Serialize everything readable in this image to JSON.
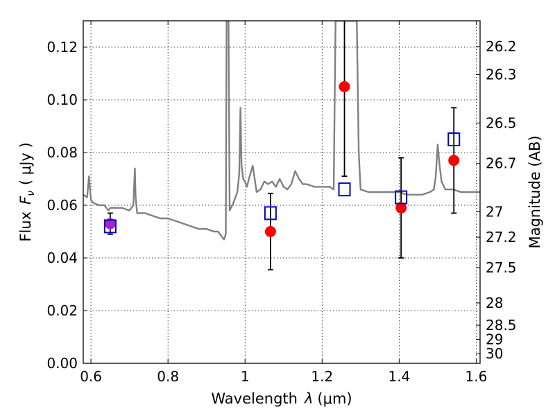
{
  "chart_data": {
    "type": "scatter",
    "title": "",
    "xlabel_text": "Wavelength",
    "xlabel_symbol": "λ",
    "xlabel_unit": "(μm)",
    "ylabel_text": "Flux",
    "ylabel_symbol": "F",
    "ylabel_subscript": "ν",
    "ylabel_unit": "( μJy )",
    "y2label": "Magnitude (AB)",
    "xlim": [
      0.58,
      1.61
    ],
    "ylim": [
      0.0,
      0.13
    ],
    "xticks": [
      0.6,
      0.8,
      1.0,
      1.2,
      1.4,
      1.6
    ],
    "xtick_labels": [
      "0.6",
      "0.8",
      "1",
      "1.2",
      "1.4",
      "1.6"
    ],
    "yticks": [
      0.0,
      0.02,
      0.04,
      0.06,
      0.08,
      0.1,
      0.12
    ],
    "ytick_labels": [
      "0.00",
      "0.02",
      "0.04",
      "0.06",
      "0.08",
      "0.10",
      "0.12"
    ],
    "y2ticks": [
      26.2,
      26.3,
      26.5,
      26.7,
      27,
      27.2,
      27.5,
      28,
      28.5,
      29,
      30
    ],
    "y2tick_labels": [
      "26.2",
      "26.3",
      "26.5",
      "26.7",
      "27",
      "27.2",
      "27.5",
      "28",
      "28.5",
      "29",
      "30"
    ],
    "grid": true,
    "colors": {
      "model": "#808080",
      "observed": "#ff0000",
      "model_photometry": "#0000cc",
      "overlap": "#aa22cc",
      "errorbar": "#000000"
    },
    "series": [
      {
        "kind": "line",
        "x": [
          0.58,
          0.59,
          0.595,
          0.6,
          0.605,
          0.62,
          0.635,
          0.64,
          0.645,
          0.65,
          0.66,
          0.68,
          0.7,
          0.71,
          0.714,
          0.716,
          0.72,
          0.74,
          0.76,
          0.78,
          0.8,
          0.82,
          0.84,
          0.86,
          0.88,
          0.9,
          0.92,
          0.93,
          0.94,
          0.945,
          0.95,
          0.952,
          0.955,
          0.957,
          0.96,
          0.97,
          0.98,
          0.985,
          0.988,
          0.991,
          0.995,
          1.0,
          1.005,
          1.01,
          1.02,
          1.03,
          1.04,
          1.05,
          1.06,
          1.07,
          1.08,
          1.09,
          1.1,
          1.11,
          1.12,
          1.13,
          1.14,
          1.15,
          1.16,
          1.18,
          1.2,
          1.22,
          1.23,
          1.235,
          1.24,
          1.245,
          1.25,
          1.255,
          1.26,
          1.27,
          1.275,
          1.28,
          1.285,
          1.29,
          1.295,
          1.3,
          1.32,
          1.34,
          1.36,
          1.38,
          1.4,
          1.42,
          1.44,
          1.46,
          1.48,
          1.49,
          1.495,
          1.5,
          1.505,
          1.51,
          1.52,
          1.54,
          1.56,
          1.58,
          1.6,
          1.61
        ],
        "y": [
          0.064,
          0.063,
          0.071,
          0.062,
          0.061,
          0.06,
          0.06,
          0.059,
          0.058,
          0.059,
          0.059,
          0.059,
          0.058,
          0.06,
          0.074,
          0.063,
          0.057,
          0.057,
          0.056,
          0.055,
          0.055,
          0.054,
          0.053,
          0.052,
          0.051,
          0.051,
          0.05,
          0.05,
          0.048,
          0.047,
          0.049,
          0.13,
          0.13,
          0.13,
          0.058,
          0.061,
          0.065,
          0.072,
          0.097,
          0.075,
          0.07,
          0.069,
          0.067,
          0.07,
          0.075,
          0.065,
          0.066,
          0.069,
          0.068,
          0.069,
          0.067,
          0.07,
          0.067,
          0.066,
          0.068,
          0.073,
          0.07,
          0.068,
          0.068,
          0.067,
          0.067,
          0.067,
          0.066,
          0.13,
          0.13,
          0.13,
          0.13,
          0.13,
          0.13,
          0.13,
          0.13,
          0.13,
          0.13,
          0.13,
          0.08,
          0.066,
          0.065,
          0.065,
          0.065,
          0.065,
          0.065,
          0.064,
          0.064,
          0.064,
          0.065,
          0.066,
          0.071,
          0.083,
          0.075,
          0.069,
          0.066,
          0.066,
          0.065,
          0.065,
          0.065,
          0.065
        ]
      },
      {
        "kind": "points",
        "marker": "circle",
        "x": [
          0.65,
          1.066,
          1.258,
          1.405,
          1.542
        ],
        "y": [
          0.053,
          0.05,
          0.105,
          0.059,
          0.077
        ],
        "yerr": [
          0.004,
          0.0145,
          0.034,
          0.019,
          0.02
        ]
      },
      {
        "kind": "points",
        "marker": "square",
        "x": [
          0.65,
          1.066,
          1.258,
          1.405,
          1.542
        ],
        "y": [
          0.052,
          0.057,
          0.066,
          0.063,
          0.085
        ]
      }
    ]
  }
}
